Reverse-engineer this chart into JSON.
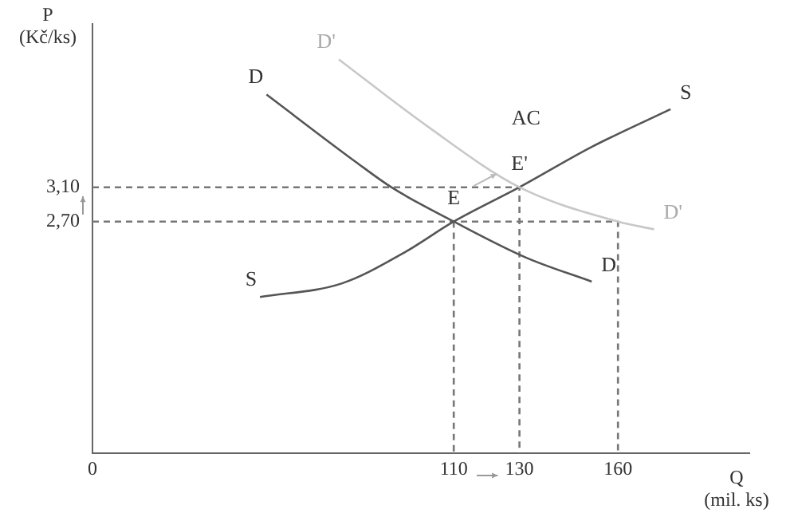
{
  "chart_data": {
    "type": "line",
    "xlabel": "Q\n(mil. ks)",
    "ylabel": "P\n(Kč/ks)",
    "xlim": [
      0,
      200
    ],
    "ylim": [
      0,
      5
    ],
    "xticks": [
      0,
      110,
      130,
      160
    ],
    "yticks": [
      {
        "value": 2.7,
        "label": "2,70"
      },
      {
        "value": 3.1,
        "label": "3,10"
      }
    ],
    "grid": false,
    "legend": false,
    "marker": "none",
    "series": [
      {
        "name": "D",
        "color": "#555555",
        "x": [
          53,
          80,
          91,
          110,
          132,
          152
        ],
        "values": [
          4.18,
          3.4,
          3.1,
          2.7,
          2.28,
          2.0
        ]
      },
      {
        "name": "D'",
        "color": "#c8c8c8",
        "x": [
          75,
          102,
          130,
          160,
          171
        ],
        "values": [
          4.59,
          3.81,
          3.1,
          2.7,
          2.61
        ]
      },
      {
        "name": "S",
        "color": "#555555",
        "x": [
          51,
          76,
          95,
          110,
          130,
          152,
          176
        ],
        "values": [
          1.82,
          1.98,
          2.34,
          2.7,
          3.1,
          3.57,
          4.01
        ]
      },
      {
        "color": "#777777",
        "line_style": "dashed",
        "x": [
          0,
          130,
          130
        ],
        "values": [
          3.1,
          3.1,
          0
        ]
      },
      {
        "color": "#777777",
        "line_style": "dashed",
        "x": [
          0,
          160,
          160
        ],
        "values": [
          2.7,
          2.7,
          0
        ]
      },
      {
        "color": "#777777",
        "line_style": "dashed",
        "x": [
          110,
          110
        ],
        "values": [
          2.7,
          0
        ]
      }
    ],
    "annotations": [
      {
        "text": "E",
        "x": 110,
        "y": 2.7
      },
      {
        "text": "E'",
        "x": 130,
        "y": 3.1
      },
      "AC"
    ]
  }
}
